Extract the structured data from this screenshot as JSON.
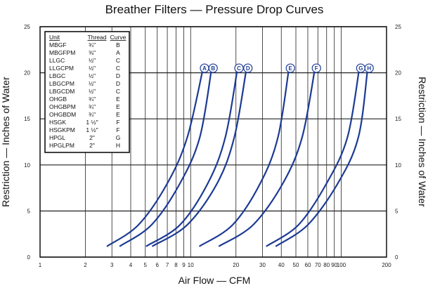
{
  "chart_data": {
    "type": "line",
    "title": "Breather Filters — Pressure Drop Curves",
    "xlabel": "Air Flow — CFM",
    "ylabel": "Restriction — Inches of Water",
    "ylabel_right": "Restriction — Inches of Water",
    "x_scale": "log",
    "xlim": [
      1,
      200
    ],
    "ylim": [
      0,
      25
    ],
    "x_ticks": [
      1,
      2,
      3,
      4,
      5,
      6,
      7,
      8,
      9,
      10,
      20,
      30,
      40,
      50,
      60,
      70,
      80,
      90,
      100,
      200
    ],
    "x_tick_labels": [
      "1",
      "2",
      "3",
      "4",
      "5",
      "6",
      "7",
      "8",
      "9",
      "10",
      "20",
      "30",
      "40",
      "50",
      "60",
      "70",
      "80",
      "90",
      "100",
      "200"
    ],
    "y_ticks": [
      0,
      5,
      10,
      15,
      20,
      25
    ],
    "y_tick_labels": [
      "0",
      "5",
      "10",
      "15",
      "20",
      "25"
    ],
    "grid": true,
    "legend_placement": "top-left",
    "series": [
      {
        "name": "A",
        "x": [
          2.8,
          4.5,
          7,
          9.5,
          12.1
        ],
        "y": [
          1.2,
          3.5,
          8,
          13,
          20.5
        ]
      },
      {
        "name": "B",
        "x": [
          3.4,
          5.5,
          8.5,
          11.5,
          13.8
        ],
        "y": [
          1.2,
          3.5,
          8,
          13,
          20.5
        ]
      },
      {
        "name": "C",
        "x": [
          5.1,
          8.5,
          13,
          17,
          20.5
        ],
        "y": [
          1.2,
          3.5,
          8,
          13,
          20.5
        ]
      },
      {
        "name": "D",
        "x": [
          5.6,
          9.5,
          15,
          19.5,
          23.5
        ],
        "y": [
          1.2,
          3.5,
          8,
          13,
          20.5
        ]
      },
      {
        "name": "E",
        "x": [
          11.5,
          19,
          29,
          38,
          45
        ],
        "y": [
          1.2,
          3.5,
          8,
          13,
          20.5
        ]
      },
      {
        "name": "F",
        "x": [
          15.5,
          26,
          41,
          55,
          67
        ],
        "y": [
          1.2,
          3.5,
          8,
          13,
          20.5
        ]
      },
      {
        "name": "G",
        "x": [
          32,
          52,
          80,
          110,
          132
        ],
        "y": [
          1.2,
          3.5,
          8,
          13,
          20.5
        ]
      },
      {
        "name": "H",
        "x": [
          37,
          60,
          95,
          130,
          150
        ],
        "y": [
          1.2,
          3.5,
          8,
          13,
          20.5
        ]
      }
    ],
    "curve_label_letters": [
      "A",
      "B",
      "C",
      "D",
      "E",
      "F",
      "G",
      "H"
    ],
    "legend_table": {
      "headers": [
        "Unit",
        "Thread",
        "Curve"
      ],
      "rows": [
        [
          "MBGF",
          "¾\"",
          "B"
        ],
        [
          "MBGFPM",
          "⅜\"",
          "A"
        ],
        [
          "LLGC",
          "½\"",
          "C"
        ],
        [
          "LLGCPM",
          "½\"",
          "C"
        ],
        [
          "LBGC",
          "½\"",
          "D"
        ],
        [
          "LBGCPM",
          "½\"",
          "D"
        ],
        [
          "LBGCDM",
          "½\"",
          "C"
        ],
        [
          "OHGB",
          "¾\"",
          "E"
        ],
        [
          "OHGBPM",
          "¾\"",
          "E"
        ],
        [
          "OHGBDM",
          "¾\"",
          "E"
        ],
        [
          "HSGK",
          "1 ½\"",
          "F"
        ],
        [
          "HSGKPM",
          "1 ½\"",
          "F"
        ],
        [
          "HPGL",
          "2\"",
          "G"
        ],
        [
          "HPGLPM",
          "2\"",
          "H"
        ]
      ]
    },
    "colors": {
      "curve": "#1c3a94",
      "grid": "#222222"
    }
  }
}
